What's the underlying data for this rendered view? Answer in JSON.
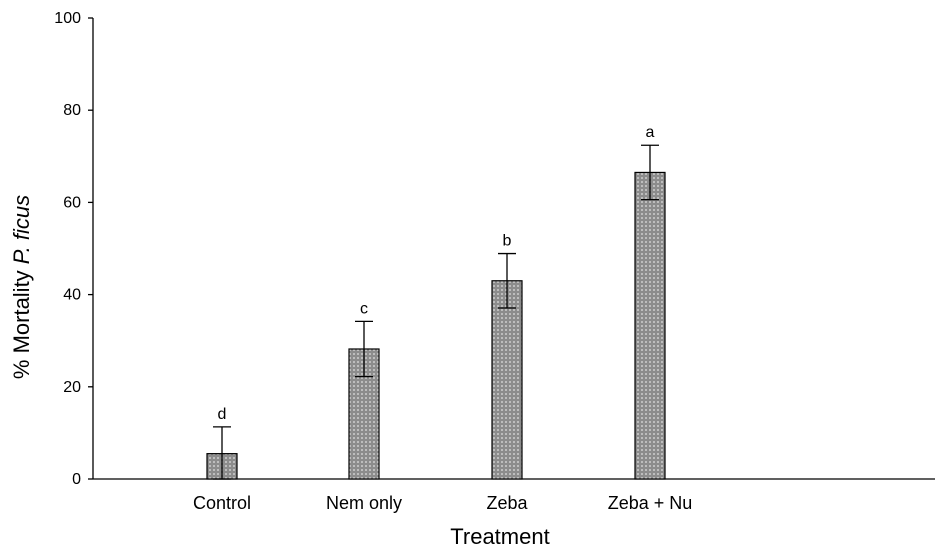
{
  "chart_data": {
    "type": "bar",
    "categories": [
      "Control",
      "Nem only",
      "Zeba",
      "Zeba + Nu"
    ],
    "values": [
      5.5,
      28.2,
      43.0,
      66.5
    ],
    "errors": [
      5.8,
      6.0,
      5.9,
      5.9
    ],
    "significance_letters": [
      "d",
      "c",
      "b",
      "a"
    ],
    "xlabel": "Treatment",
    "ylabel_prefix": "% Mortality ",
    "ylabel_italic": "P. ficus",
    "ylim": [
      0,
      100
    ],
    "yticks": [
      0,
      20,
      40,
      60,
      80,
      100
    ],
    "bar_fill": "#8c8c8c",
    "grid": false
  }
}
